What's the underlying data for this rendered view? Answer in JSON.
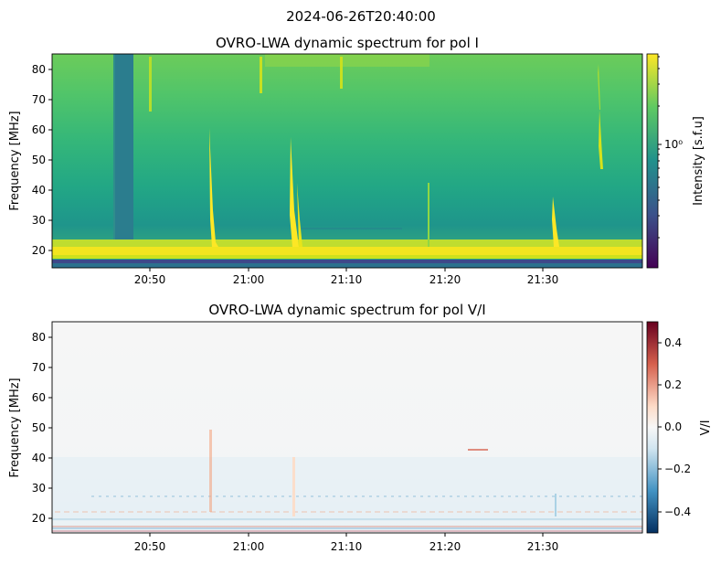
{
  "figure": {
    "suptitle": "2024-06-26T20:40:00"
  },
  "chart_data": [
    {
      "type": "heatmap",
      "title": "OVRO-LWA dynamic spectrum for pol I",
      "xlabel": "",
      "ylabel": "Frequency [MHz]",
      "x_ticks": [
        "20:50",
        "21:00",
        "21:10",
        "21:20",
        "21:30"
      ],
      "y_ticks": [
        20,
        30,
        40,
        50,
        60,
        70,
        80
      ],
      "xlim": [
        "20:40",
        "21:40"
      ],
      "ylim": [
        15,
        85
      ],
      "colormap": "viridis",
      "colorbar": {
        "label": "Intensity [s.f.u]",
        "scale": "log",
        "major_tick_label": "10⁰"
      },
      "features": {
        "low_signal_band": {
          "time_start": "20:46",
          "time_end": "20:48"
        },
        "bright_band_mhz": [
          17.5,
          21
        ],
        "bursts": [
          "20:57",
          "21:05",
          "21:31",
          "21:36"
        ]
      }
    },
    {
      "type": "heatmap",
      "title": "OVRO-LWA dynamic spectrum for pol V/I",
      "xlabel": "",
      "ylabel": "Frequency [MHz]",
      "x_ticks": [
        "20:50",
        "21:00",
        "21:10",
        "21:20",
        "21:30"
      ],
      "y_ticks": [
        20,
        30,
        40,
        50,
        60,
        70,
        80
      ],
      "xlim": [
        "20:40",
        "21:40"
      ],
      "ylim": [
        15,
        85
      ],
      "colormap": "RdBu_r",
      "colorbar": {
        "label": "V/I",
        "range": [
          -0.5,
          0.5
        ],
        "ticks": [
          "0.4",
          "0.2",
          "0.0",
          "−0.2",
          "−0.4"
        ]
      }
    }
  ]
}
